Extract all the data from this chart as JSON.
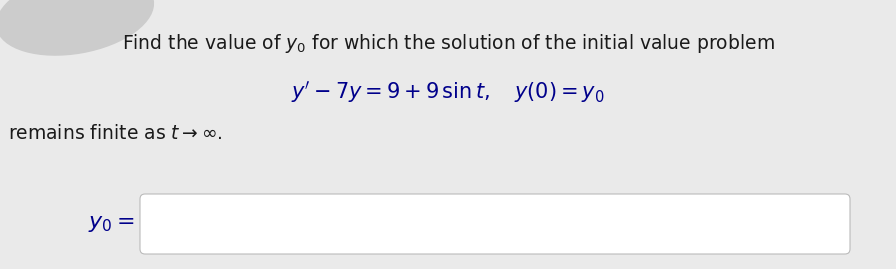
{
  "background_color": "#eaeaea",
  "text_color": "#1a1a1a",
  "equation_color": "#00008b",
  "title_text": "Find the value of $y_0$ for which the solution of the initial value problem",
  "equation_text": "$y' - 7y = 9 + 9\\,\\sin t, \\quad y(0) = y_0$",
  "body_text": "remains finite as $t \\to \\infty$.",
  "label_text": "$y_0 =$",
  "title_fontsize": 13.5,
  "equation_fontsize": 15,
  "body_fontsize": 13.5,
  "label_fontsize": 16,
  "blob_color": "#cccccc",
  "box_edge_color": "#bbbbbb",
  "box_face_color": "#ffffff"
}
